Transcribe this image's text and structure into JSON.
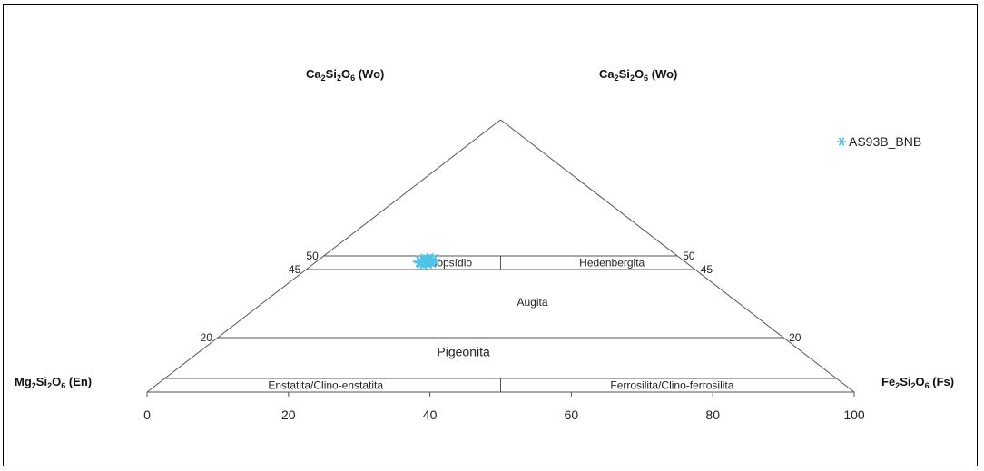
{
  "chart_data": {
    "type": "scatter",
    "diagram": "pyroxene quadrilateral",
    "corner_labels": {
      "top_left": {
        "pre": "Ca",
        "s1": "2",
        "mid": "Si",
        "s2": "2",
        "post": "O",
        "s3": "6",
        "tail": " (Wo)"
      },
      "top_right": {
        "pre": "Ca",
        "s1": "2",
        "mid": "Si",
        "s2": "2",
        "post": "O",
        "s3": "6",
        "tail": " (Wo)"
      },
      "bottom_left": {
        "pre": "Mg",
        "s1": "2",
        "mid": "Si",
        "s2": "2",
        "post": "O",
        "s3": "6",
        "tail": " (En)"
      },
      "bottom_right": {
        "pre": "Fe",
        "s1": "2",
        "mid": "Si",
        "s2": "2",
        "post": "O",
        "s3": "6",
        "tail": " (Fs)"
      }
    },
    "x_ticks": [
      "0",
      "20",
      "40",
      "60",
      "80",
      "100"
    ],
    "xlim": [
      0,
      100
    ],
    "wo_lines": [
      {
        "value": 50,
        "left_label": "50",
        "right_label": "50"
      },
      {
        "value": 45,
        "left_label": "45",
        "right_label": "45"
      },
      {
        "value": 20,
        "left_label": "20",
        "right_label": "20"
      },
      {
        "value": 5
      }
    ],
    "field_labels": {
      "diopsidio": "Diopsídio",
      "hedenbergita": "Hedenbergita",
      "augita": "Augita",
      "pigeonita": "Pigeonita",
      "enstatita": "Enstatita/Clino-enstatita",
      "ferrosilita": "Ferrosilita/Clino-ferrosilita"
    },
    "series": [
      {
        "name": "AS93B_BNB",
        "color": "#4fc3e8",
        "marker": "asterisk",
        "points": [
          {
            "fs": 14.5,
            "wo": 48.0
          },
          {
            "fs": 15.0,
            "wo": 47.5
          },
          {
            "fs": 15.3,
            "wo": 48.5
          },
          {
            "fs": 15.8,
            "wo": 47.8
          },
          {
            "fs": 16.0,
            "wo": 48.2
          },
          {
            "fs": 14.8,
            "wo": 48.8
          },
          {
            "fs": 15.5,
            "wo": 47.2
          },
          {
            "fs": 16.3,
            "wo": 48.6
          },
          {
            "fs": 15.2,
            "wo": 47.9
          },
          {
            "fs": 15.6,
            "wo": 48.9
          },
          {
            "fs": 14.9,
            "wo": 47.6
          },
          {
            "fs": 16.1,
            "wo": 47.4
          },
          {
            "fs": 15.4,
            "wo": 48.3
          },
          {
            "fs": 15.9,
            "wo": 48.0
          },
          {
            "fs": 16.5,
            "wo": 47.7
          },
          {
            "fs": 14.6,
            "wo": 47.9
          },
          {
            "fs": 15.7,
            "wo": 48.4
          },
          {
            "fs": 15.1,
            "wo": 48.1
          }
        ]
      }
    ],
    "legend": {
      "position": "top-right",
      "entries": [
        "AS93B_BNB"
      ]
    }
  }
}
